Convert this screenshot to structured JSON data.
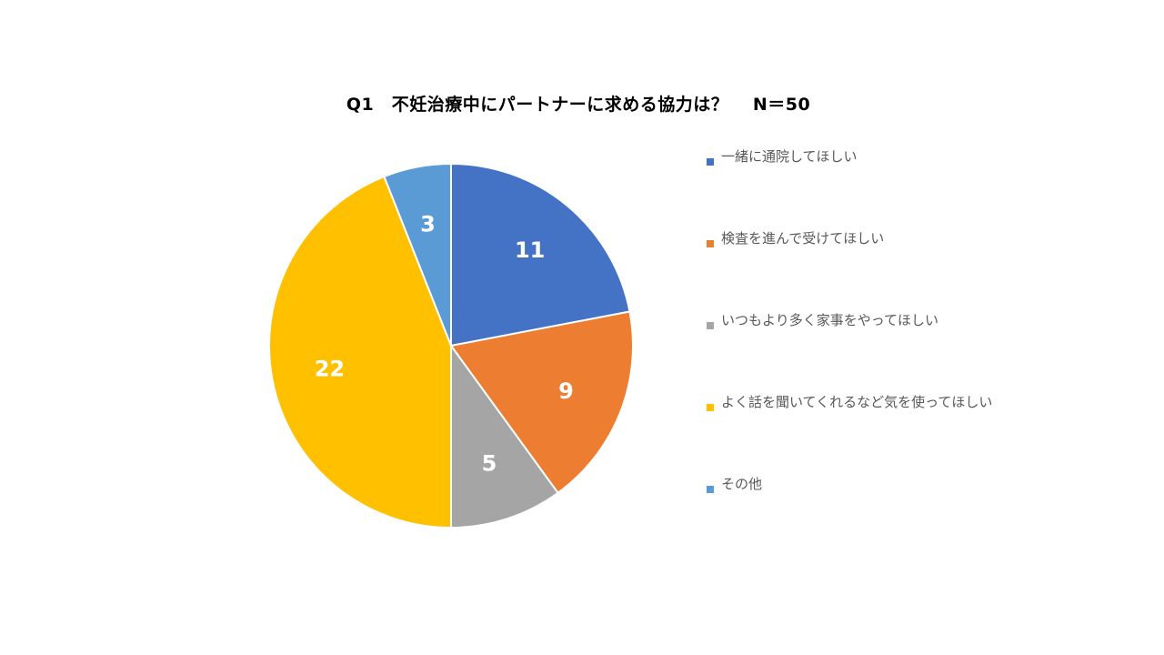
{
  "chart_data": {
    "type": "pie",
    "title": "Q1　不妊治療中にパートナーに求める協力は？　 N＝50",
    "slices": [
      {
        "name": "一緒に通院してほしい",
        "value": 11,
        "color": "#4472C4"
      },
      {
        "name": "検査を進んで受けてほしい",
        "value": 9,
        "color": "#ED7D31"
      },
      {
        "name": "いつもより多く家事をやってほしい",
        "value": 5,
        "color": "#A5A5A5"
      },
      {
        "name": "よく話を聞いてくれるなど気を使ってほしい",
        "value": 22,
        "color": "#FFC000"
      },
      {
        "name": "その他",
        "value": 3,
        "color": "#5B9BD5"
      }
    ],
    "legend_position": "right",
    "data_labels": true
  }
}
